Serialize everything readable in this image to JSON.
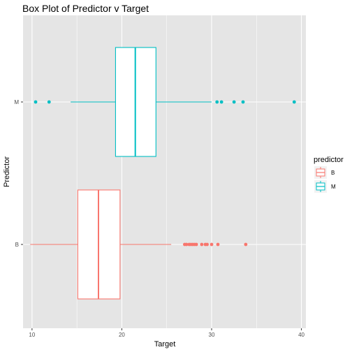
{
  "chart_data": {
    "type": "boxplot",
    "orientation": "horizontal",
    "title": "Box Plot of Predictor v Target",
    "xlabel": "Target",
    "ylabel": "Predictor",
    "xlim": [
      9,
      40.5
    ],
    "xticks": [
      10,
      20,
      30,
      40
    ],
    "grid": true,
    "background": "#e5e5e5",
    "legend": {
      "title": "predictor",
      "placement": "right",
      "entries": [
        {
          "label": "B",
          "color": "#f8766d"
        },
        {
          "label": "M",
          "color": "#00bfc4"
        }
      ]
    },
    "categories": [
      "B",
      "M"
    ],
    "series": [
      {
        "category": "B",
        "color": "#f8766d",
        "whisker_low": 9.8,
        "q1": 15.1,
        "median": 17.4,
        "q3": 19.8,
        "whisker_high": 25.5,
        "outliers": [
          27.0,
          27.2,
          27.5,
          27.7,
          27.9,
          28.1,
          28.3,
          28.9,
          29.3,
          29.5,
          30.0,
          30.7,
          33.8
        ]
      },
      {
        "category": "M",
        "color": "#00bfc4",
        "whisker_low": 14.3,
        "q1": 19.3,
        "median": 21.5,
        "q3": 23.8,
        "whisker_high": 30.0,
        "outliers": [
          10.4,
          11.9,
          30.6,
          31.1,
          32.5,
          33.5,
          39.2
        ]
      }
    ]
  }
}
